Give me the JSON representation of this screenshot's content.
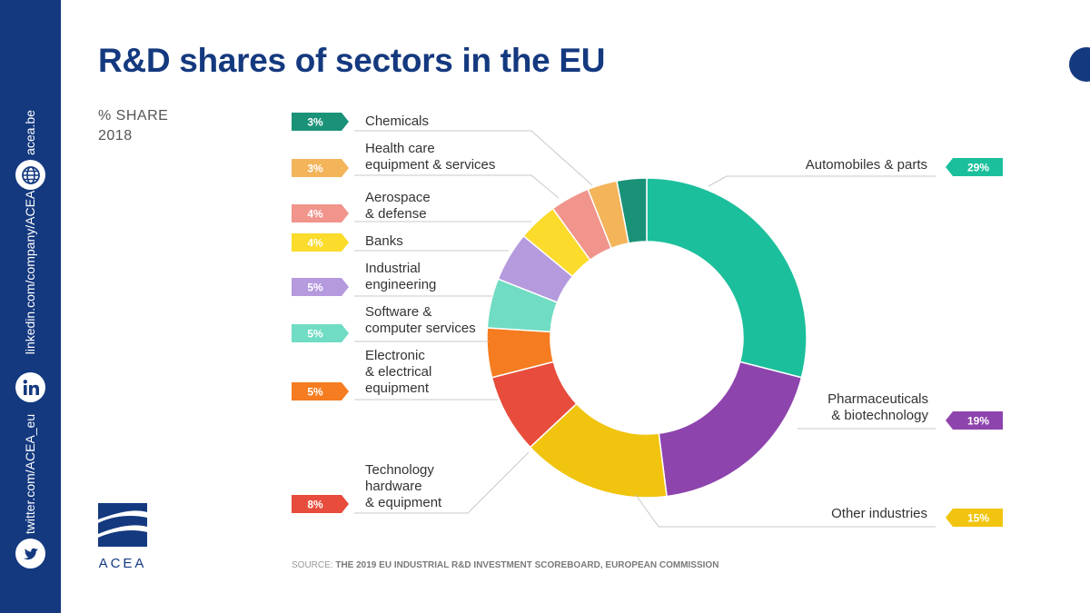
{
  "title": "R&D shares of sectors in the EU",
  "subtitle_line1": "% SHARE",
  "subtitle_line2": "2018",
  "sidebar": {
    "website": "acea.be",
    "linkedin": "linkedin.com/company/ACEA",
    "twitter": "twitter.com/ACEA_eu",
    "icons": [
      "globe-icon",
      "linkedin-icon",
      "twitter-icon"
    ]
  },
  "logo_text": "ACEA",
  "source_prefix": "SOURCE:",
  "source_text": "THE 2019 EU INDUSTRIAL R&D INVESTMENT SCOREBOARD, EUROPEAN COMMISSION",
  "colors": {
    "brand": "#14397f"
  },
  "chart_data": {
    "type": "pie",
    "variant": "donut",
    "title": "R&D shares of sectors in the EU",
    "unit": "%",
    "slices": [
      {
        "label": "Automobiles & parts",
        "value": 29,
        "display": "29%",
        "color": "#1cbf9b",
        "side": "right"
      },
      {
        "label": "Pharmaceuticals & biotechnology",
        "value": 19,
        "display": "19%",
        "color": "#8e44ad",
        "side": "right"
      },
      {
        "label": "Other industries",
        "value": 15,
        "display": "15%",
        "color": "#f1c40f",
        "side": "right"
      },
      {
        "label": "Technology hardware & equipment",
        "value": 8,
        "display": "8%",
        "color": "#e74c3c",
        "side": "left"
      },
      {
        "label": "Electronic & electrical equipment",
        "value": 5,
        "display": "5%",
        "color": "#f57c20",
        "side": "left"
      },
      {
        "label": "Software & computer services",
        "value": 5,
        "display": "5%",
        "color": "#6fdcc3",
        "side": "left"
      },
      {
        "label": "Industrial engineering",
        "value": 5,
        "display": "5%",
        "color": "#b59ade",
        "side": "left"
      },
      {
        "label": "Banks",
        "value": 4,
        "display": "4%",
        "color": "#fbdb2b",
        "side": "left"
      },
      {
        "label": "Aerospace & defense",
        "value": 4,
        "display": "4%",
        "color": "#f0948c",
        "side": "left"
      },
      {
        "label": "Health care equipment & services",
        "value": 3,
        "display": "3%",
        "color": "#f3b45a",
        "side": "left"
      },
      {
        "label": "Chemicals",
        "value": 3,
        "display": "3%",
        "color": "#1a9278",
        "side": "left"
      }
    ]
  }
}
